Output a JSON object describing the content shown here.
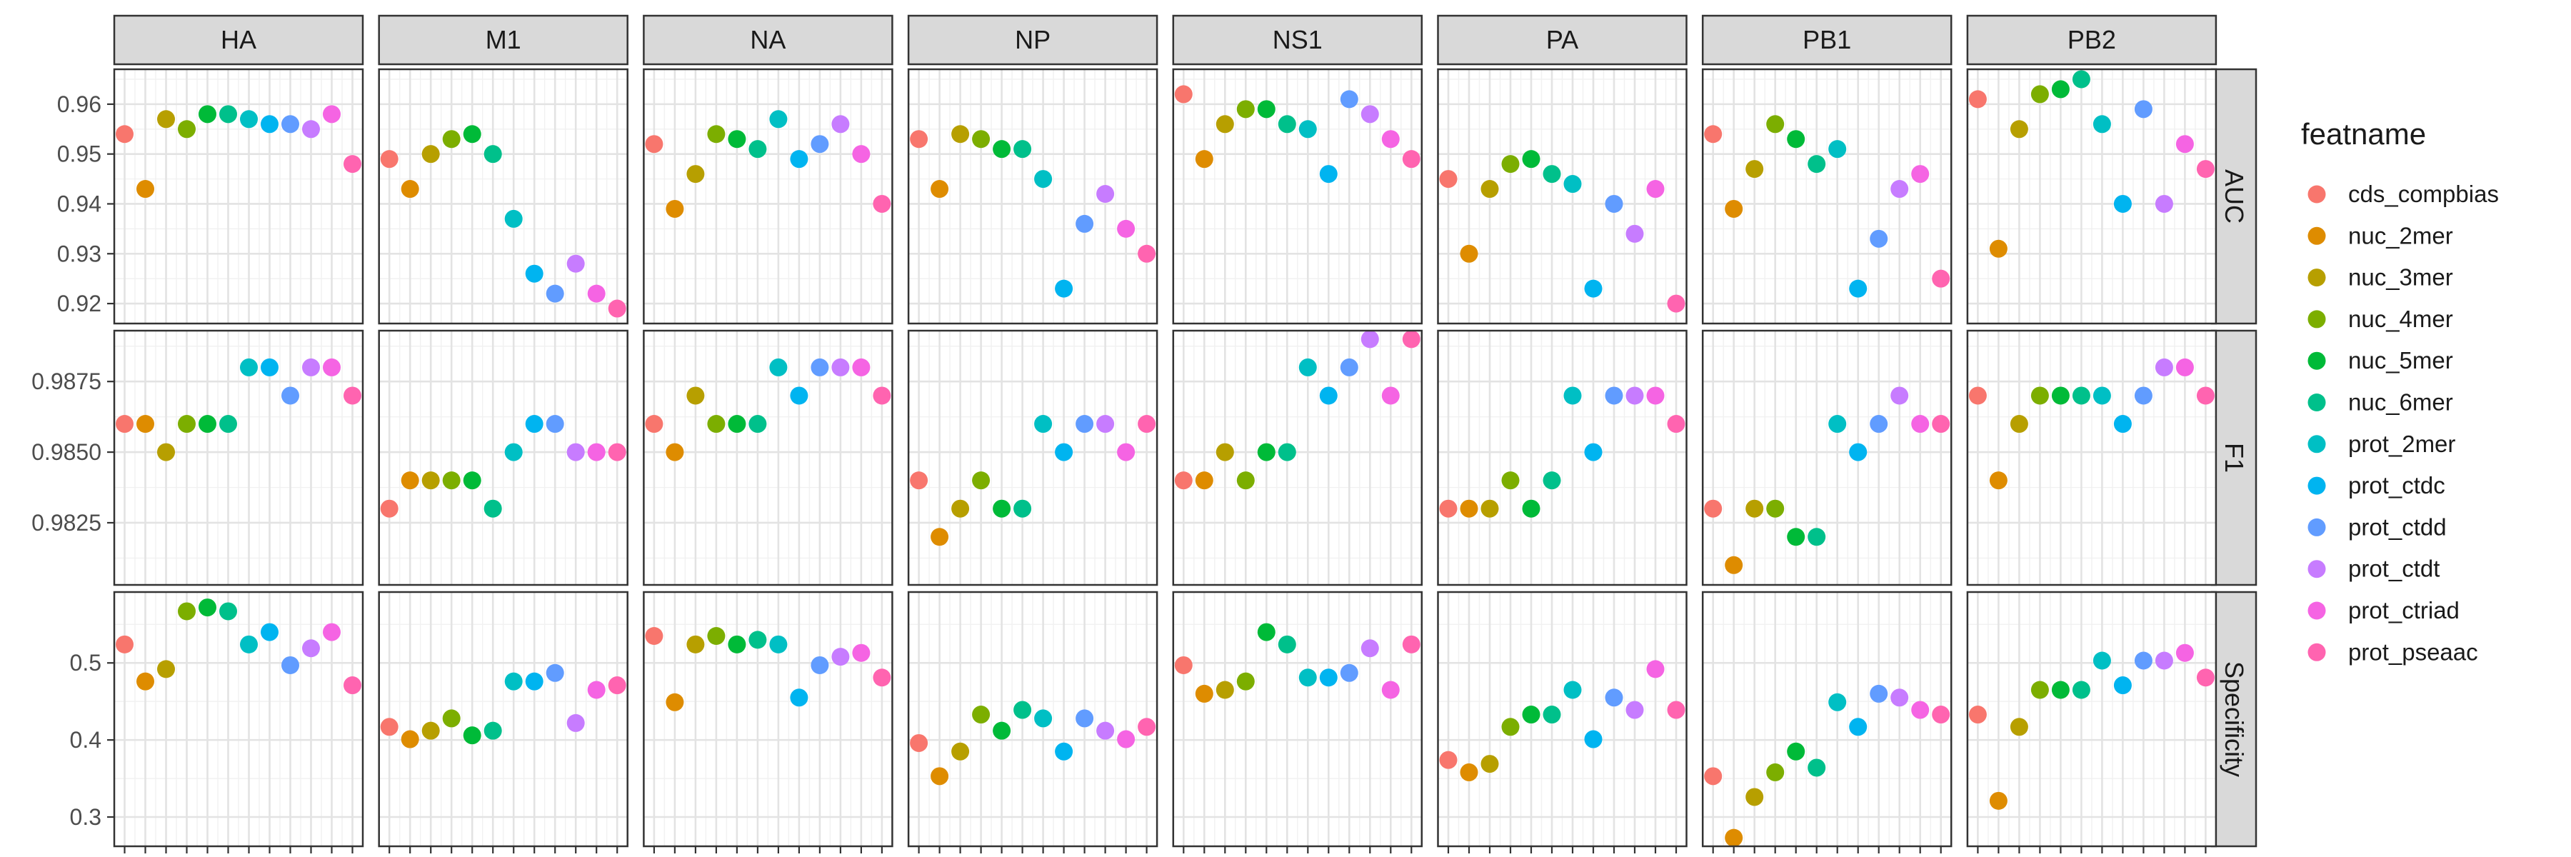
{
  "chart_data": {
    "type": "scatter",
    "title": "",
    "xlabel": "",
    "ylabel": "",
    "facet_columns": [
      "HA",
      "M1",
      "NA",
      "NP",
      "NS1",
      "PA",
      "PB1",
      "PB2"
    ],
    "facet_rows": [
      "AUC",
      "F1",
      "Specificity"
    ],
    "series_order": [
      "cds_compbias",
      "nuc_2mer",
      "nuc_3mer",
      "nuc_4mer",
      "nuc_5mer",
      "nuc_6mer",
      "prot_2mer",
      "prot_ctdc",
      "prot_ctdd",
      "prot_ctdt",
      "prot_ctriad",
      "prot_pseaac"
    ],
    "colors": [
      "#F8766D",
      "#DE8C00",
      "#B79F00",
      "#7CAE00",
      "#00BA38",
      "#00C08B",
      "#00BFC4",
      "#00B4F0",
      "#619CFF",
      "#C77CFF",
      "#F564E3",
      "#FF64B0"
    ],
    "legend": {
      "title": "featname",
      "position": "right"
    },
    "grid": true,
    "rows": {
      "AUC": {
        "ylim": [
          0.916,
          0.967
        ],
        "ticks": [
          0.92,
          0.93,
          0.94,
          0.95,
          0.96
        ],
        "tick_labels": [
          "0.92",
          "0.93",
          "0.94",
          "0.95",
          "0.96"
        ],
        "values": {
          "HA": [
            0.954,
            0.943,
            0.957,
            0.955,
            0.958,
            0.958,
            0.957,
            0.956,
            0.956,
            0.955,
            0.958,
            0.948
          ],
          "M1": [
            0.949,
            0.943,
            0.95,
            0.953,
            0.954,
            0.95,
            0.937,
            0.926,
            0.922,
            0.928,
            0.922,
            0.919
          ],
          "NA": [
            0.952,
            0.939,
            0.946,
            0.954,
            0.953,
            0.951,
            0.957,
            0.949,
            0.952,
            0.956,
            0.95,
            0.94
          ],
          "NP": [
            0.953,
            0.943,
            0.954,
            0.953,
            0.951,
            0.951,
            0.945,
            0.923,
            0.936,
            0.942,
            0.935,
            0.93
          ],
          "NS1": [
            0.962,
            0.949,
            0.956,
            0.959,
            0.959,
            0.956,
            0.955,
            0.946,
            0.961,
            0.958,
            0.953,
            0.949
          ],
          "PA": [
            0.945,
            0.93,
            0.943,
            0.948,
            0.949,
            0.946,
            0.944,
            0.923,
            0.94,
            0.934,
            0.943,
            0.92
          ],
          "PB1": [
            0.954,
            0.939,
            0.947,
            0.956,
            0.953,
            0.948,
            0.951,
            0.923,
            0.933,
            0.943,
            0.946,
            0.925
          ],
          "PB2": [
            0.961,
            0.931,
            0.955,
            0.962,
            0.963,
            0.965,
            0.956,
            0.94,
            0.959,
            0.94,
            0.952,
            0.947
          ]
        }
      },
      "F1": {
        "ylim": [
          0.9803,
          0.9893
        ],
        "ticks": [
          0.9825,
          0.985,
          0.9875
        ],
        "tick_labels": [
          "0.9825",
          "0.9850",
          "0.9875"
        ],
        "values": {
          "HA": [
            0.986,
            0.986,
            0.985,
            0.986,
            0.986,
            0.986,
            0.988,
            0.988,
            0.987,
            0.988,
            0.988,
            0.987
          ],
          "M1": [
            0.983,
            0.984,
            0.984,
            0.984,
            0.984,
            0.983,
            0.985,
            0.986,
            0.986,
            0.985,
            0.985,
            0.985
          ],
          "NA": [
            0.986,
            0.985,
            0.987,
            0.986,
            0.986,
            0.986,
            0.988,
            0.987,
            0.988,
            0.988,
            0.988,
            0.987
          ],
          "NP": [
            0.984,
            0.982,
            0.983,
            0.984,
            0.983,
            0.983,
            0.986,
            0.985,
            0.986,
            0.986,
            0.985,
            0.986
          ],
          "NS1": [
            0.984,
            0.984,
            0.985,
            0.984,
            0.985,
            0.985,
            0.988,
            0.987,
            0.988,
            0.989,
            0.987,
            0.989
          ],
          "PA": [
            0.983,
            0.983,
            0.983,
            0.984,
            0.983,
            0.984,
            0.987,
            0.985,
            0.987,
            0.987,
            0.987,
            0.986
          ],
          "PB1": [
            0.983,
            0.981,
            0.983,
            0.983,
            0.982,
            0.982,
            0.986,
            0.985,
            0.986,
            0.987,
            0.986,
            0.986
          ],
          "PB2": [
            0.987,
            0.984,
            0.986,
            0.987,
            0.987,
            0.987,
            0.987,
            0.986,
            0.987,
            0.988,
            0.988,
            0.987
          ]
        }
      },
      "Specificity": {
        "ylim": [
          0.262,
          0.592
        ],
        "ticks": [
          0.3,
          0.4,
          0.5
        ],
        "tick_labels": [
          "0.3",
          "0.4",
          "0.5"
        ],
        "values": {
          "HA": [
            0.524,
            0.476,
            0.492,
            0.567,
            0.572,
            0.567,
            0.524,
            0.54,
            0.497,
            0.519,
            0.54,
            0.471
          ],
          "M1": [
            0.417,
            0.401,
            0.412,
            0.428,
            0.406,
            0.412,
            0.476,
            0.476,
            0.487,
            0.422,
            0.465,
            0.471
          ],
          "NA": [
            0.535,
            0.449,
            0.524,
            0.535,
            0.524,
            0.53,
            0.524,
            0.455,
            0.497,
            0.508,
            0.513,
            0.481
          ],
          "NP": [
            0.396,
            0.353,
            0.385,
            0.433,
            0.412,
            0.439,
            0.428,
            0.385,
            0.428,
            0.412,
            0.401,
            0.417
          ],
          "NS1": [
            0.497,
            0.46,
            0.465,
            0.476,
            0.54,
            0.524,
            0.481,
            0.481,
            0.487,
            0.519,
            0.465,
            0.524
          ],
          "PA": [
            0.374,
            0.358,
            0.369,
            0.417,
            0.433,
            0.433,
            0.465,
            0.401,
            0.455,
            0.439,
            0.492,
            0.439
          ],
          "PB1": [
            0.353,
            0.273,
            0.326,
            0.358,
            0.385,
            0.364,
            0.449,
            0.417,
            0.46,
            0.455,
            0.439,
            0.433
          ],
          "PB2": [
            0.433,
            0.321,
            0.417,
            0.465,
            0.465,
            0.465,
            0.503,
            0.471,
            0.503,
            0.503,
            0.513,
            0.481
          ]
        }
      }
    }
  }
}
